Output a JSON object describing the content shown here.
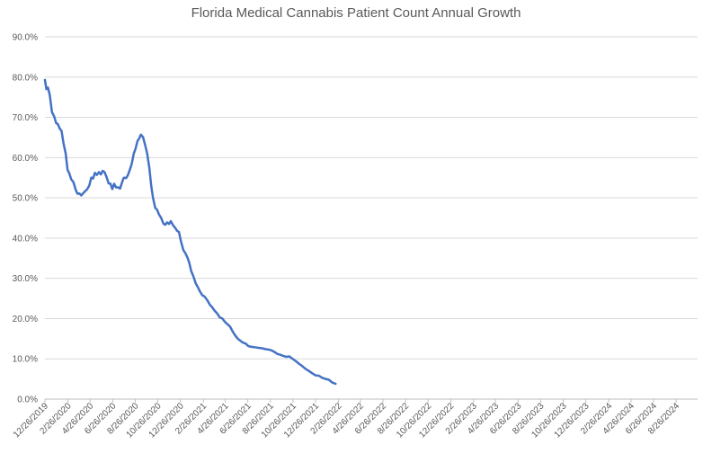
{
  "chart_data": {
    "type": "line",
    "title": "Florida Medical Cannabis Patient Count Annual Growth",
    "xlabel": "",
    "ylabel": "",
    "ylim": [
      0,
      90
    ],
    "grid": true,
    "legend": "none",
    "y_tick_labels": [
      "0.0%",
      "10.0%",
      "20.0%",
      "30.0%",
      "40.0%",
      "50.0%",
      "60.0%",
      "70.0%",
      "80.0%",
      "90.0%"
    ],
    "x_tick_labels": [
      "12/26/2019",
      "2/26/2020",
      "4/26/2020",
      "6/26/2020",
      "8/26/2020",
      "10/26/2020",
      "12/26/2020",
      "2/26/2021",
      "4/26/2021",
      "6/26/2021",
      "8/26/2021",
      "10/26/2021",
      "12/26/2021",
      "2/26/2022",
      "4/26/2022",
      "6/26/2022",
      "8/26/2022",
      "10/26/2022",
      "12/26/2022",
      "2/26/2023",
      "4/26/2023",
      "6/26/2023",
      "8/26/2023",
      "10/26/2023",
      "12/26/2023",
      "2/26/2024",
      "4/26/2024",
      "6/26/2024",
      "8/26/2024"
    ],
    "x_range": [
      "2019-12-26",
      "2024-10-23"
    ],
    "series": [
      {
        "color": "#4472c4",
        "points": [
          [
            "2019-12-26",
            79.3
          ],
          [
            "2019-12-30",
            77.0
          ],
          [
            "2020-01-03",
            77.4
          ],
          [
            "2020-01-08",
            75.5
          ],
          [
            "2020-01-14",
            71.3
          ],
          [
            "2020-01-20",
            70.2
          ],
          [
            "2020-01-25",
            68.6
          ],
          [
            "2020-01-30",
            68.3
          ],
          [
            "2020-02-04",
            67.2
          ],
          [
            "2020-02-09",
            66.6
          ],
          [
            "2020-02-14",
            63.6
          ],
          [
            "2020-02-20",
            61.0
          ],
          [
            "2020-02-25",
            57.0
          ],
          [
            "2020-03-01",
            56.0
          ],
          [
            "2020-03-06",
            54.6
          ],
          [
            "2020-03-12",
            53.9
          ],
          [
            "2020-03-18",
            52.0
          ],
          [
            "2020-03-23",
            51.0
          ],
          [
            "2020-03-28",
            51.1
          ],
          [
            "2020-04-02",
            50.6
          ],
          [
            "2020-04-08",
            51.2
          ],
          [
            "2020-04-13",
            51.7
          ],
          [
            "2020-04-18",
            52.1
          ],
          [
            "2020-04-24",
            53.1
          ],
          [
            "2020-04-29",
            55.0
          ],
          [
            "2020-05-04",
            54.8
          ],
          [
            "2020-05-09",
            56.2
          ],
          [
            "2020-05-14",
            55.7
          ],
          [
            "2020-05-20",
            56.4
          ],
          [
            "2020-05-25",
            55.8
          ],
          [
            "2020-05-30",
            56.7
          ],
          [
            "2020-06-04",
            56.4
          ],
          [
            "2020-06-10",
            55.0
          ],
          [
            "2020-06-15",
            53.6
          ],
          [
            "2020-06-20",
            53.5
          ],
          [
            "2020-06-25",
            52.2
          ],
          [
            "2020-06-30",
            53.5
          ],
          [
            "2020-07-05",
            52.6
          ],
          [
            "2020-07-11",
            52.6
          ],
          [
            "2020-07-16",
            52.3
          ],
          [
            "2020-07-21",
            53.8
          ],
          [
            "2020-07-26",
            55.0
          ],
          [
            "2020-08-01",
            54.9
          ],
          [
            "2020-08-06",
            55.6
          ],
          [
            "2020-08-11",
            56.9
          ],
          [
            "2020-08-16",
            58.3
          ],
          [
            "2020-08-22",
            61.0
          ],
          [
            "2020-08-27",
            62.3
          ],
          [
            "2020-09-01",
            64.1
          ],
          [
            "2020-09-06",
            64.8
          ],
          [
            "2020-09-10",
            65.7
          ],
          [
            "2020-09-16",
            65.1
          ],
          [
            "2020-09-22",
            63.0
          ],
          [
            "2020-09-27",
            61.0
          ],
          [
            "2020-10-03",
            57.5
          ],
          [
            "2020-10-08",
            53.0
          ],
          [
            "2020-10-13",
            50.0
          ],
          [
            "2020-10-19",
            47.5
          ],
          [
            "2020-10-24",
            47.0
          ],
          [
            "2020-10-29",
            45.9
          ],
          [
            "2020-11-04",
            45.0
          ],
          [
            "2020-11-10",
            43.6
          ],
          [
            "2020-11-15",
            43.3
          ],
          [
            "2020-11-20",
            43.9
          ],
          [
            "2020-11-25",
            43.5
          ],
          [
            "2020-11-30",
            44.2
          ],
          [
            "2020-12-06",
            43.2
          ],
          [
            "2020-12-12",
            42.5
          ],
          [
            "2020-12-17",
            41.8
          ],
          [
            "2020-12-22",
            41.5
          ],
          [
            "2020-12-28",
            39.0
          ],
          [
            "2021-01-03",
            37.0
          ],
          [
            "2021-01-08",
            36.3
          ],
          [
            "2021-01-14",
            35.2
          ],
          [
            "2021-01-19",
            33.8
          ],
          [
            "2021-01-24",
            31.8
          ],
          [
            "2021-01-30",
            30.5
          ],
          [
            "2021-02-05",
            28.8
          ],
          [
            "2021-02-11",
            27.8
          ],
          [
            "2021-02-17",
            26.7
          ],
          [
            "2021-02-23",
            25.8
          ],
          [
            "2021-03-01",
            25.5
          ],
          [
            "2021-03-08",
            24.6
          ],
          [
            "2021-03-15",
            23.5
          ],
          [
            "2021-03-21",
            22.9
          ],
          [
            "2021-03-28",
            22.0
          ],
          [
            "2021-04-04",
            21.3
          ],
          [
            "2021-04-11",
            20.3
          ],
          [
            "2021-04-18",
            20.0
          ],
          [
            "2021-04-25",
            19.2
          ],
          [
            "2021-05-02",
            18.6
          ],
          [
            "2021-05-09",
            18.0
          ],
          [
            "2021-05-16",
            16.8
          ],
          [
            "2021-05-23",
            15.8
          ],
          [
            "2021-05-30",
            15.0
          ],
          [
            "2021-06-06",
            14.5
          ],
          [
            "2021-06-13",
            14.0
          ],
          [
            "2021-06-20",
            13.8
          ],
          [
            "2021-06-27",
            13.2
          ],
          [
            "2021-07-04",
            13.0
          ],
          [
            "2021-07-12",
            12.9
          ],
          [
            "2021-07-20",
            12.8
          ],
          [
            "2021-07-28",
            12.7
          ],
          [
            "2021-08-05",
            12.6
          ],
          [
            "2021-08-13",
            12.4
          ],
          [
            "2021-08-21",
            12.3
          ],
          [
            "2021-08-29",
            12.1
          ],
          [
            "2021-09-06",
            11.7
          ],
          [
            "2021-09-14",
            11.2
          ],
          [
            "2021-09-22",
            11.0
          ],
          [
            "2021-09-30",
            10.7
          ],
          [
            "2021-10-08",
            10.5
          ],
          [
            "2021-10-16",
            10.6
          ],
          [
            "2021-10-25",
            10.0
          ],
          [
            "2021-11-03",
            9.4
          ],
          [
            "2021-11-11",
            8.8
          ],
          [
            "2021-11-20",
            8.2
          ],
          [
            "2021-11-29",
            7.5
          ],
          [
            "2021-12-08",
            7.0
          ],
          [
            "2021-12-17",
            6.4
          ],
          [
            "2021-12-26",
            5.9
          ],
          [
            "2022-01-04",
            5.8
          ],
          [
            "2022-01-13",
            5.3
          ],
          [
            "2022-01-22",
            5.0
          ],
          [
            "2022-01-31",
            4.8
          ],
          [
            "2022-02-09",
            4.1
          ],
          [
            "2022-02-18",
            3.8
          ]
        ]
      }
    ]
  }
}
